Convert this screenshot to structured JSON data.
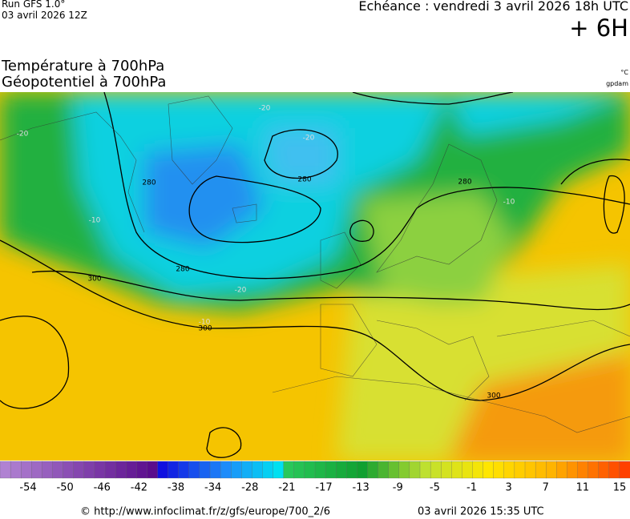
{
  "header": {
    "run": "Run GFS 1.0°",
    "run_date": "03 avril 2026 12Z",
    "echeance": "Echéance : vendredi 3 avril 2026 18h UTC",
    "lead": "+ 6H",
    "title_1": "Température à 700hPa",
    "title_2": "Géopotentiel à 700hPa",
    "unit": "°C",
    "unit_2": "gpdam"
  },
  "map": {
    "contour_labels": [
      "280",
      "280",
      "280",
      "280",
      "300",
      "300",
      "300",
      "-20",
      "-20",
      "-20",
      "-10",
      "-10",
      "-10",
      "-20"
    ]
  },
  "legend": {
    "labels": [
      -54,
      -50,
      -46,
      -42,
      -38,
      -34,
      -28,
      -21,
      -17,
      -13,
      -9,
      -5,
      -1,
      3,
      7,
      11,
      15
    ]
  },
  "footer": {
    "source": "© http://www.infoclimat.fr/z/gfs/europe/700_2/6",
    "generated": "03 avril 2026 15:35 UTC"
  }
}
